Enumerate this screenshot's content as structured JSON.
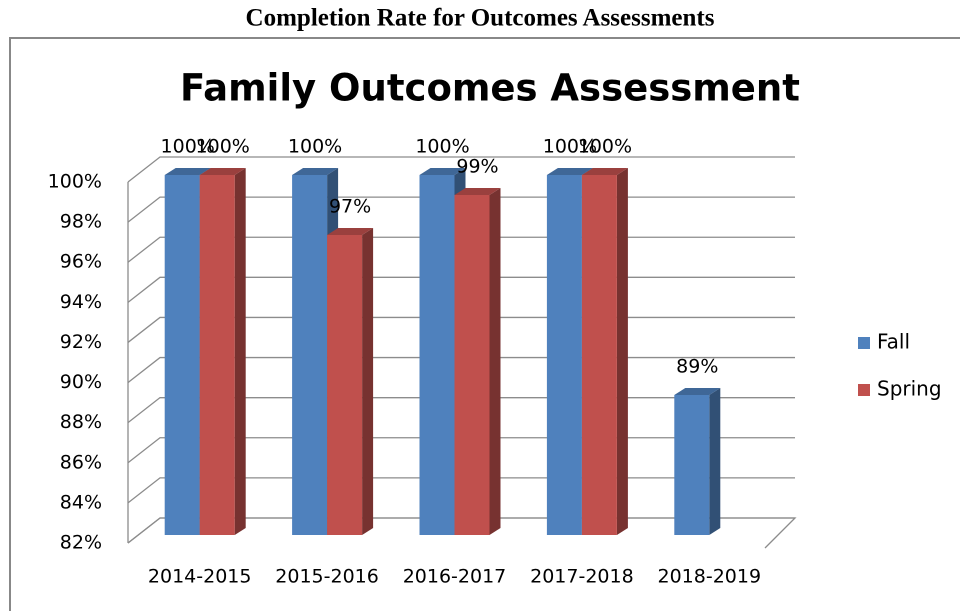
{
  "page_title": "Completion Rate for Outcomes Assessments",
  "chart_data": {
    "type": "bar3d",
    "title": "Family Outcomes Assessment",
    "categories": [
      "2014-2015",
      "2015-2016",
      "2016-2017",
      "2017-2018",
      "2018-2019"
    ],
    "series": [
      {
        "name": "Fall",
        "color": "#4f81bd",
        "values": [
          100,
          100,
          100,
          100,
          89
        ],
        "value_labels": [
          "100%",
          "100%",
          "100%",
          "100%",
          "89%"
        ]
      },
      {
        "name": "Spring",
        "color": "#c0504d",
        "values": [
          100,
          97,
          99,
          100,
          null
        ],
        "value_labels": [
          "100%",
          "97%",
          "99%",
          "100%",
          null
        ]
      }
    ],
    "ylim": [
      82,
      100
    ],
    "yticks": [
      {
        "value": 82,
        "label": "82%"
      },
      {
        "value": 84,
        "label": "84%"
      },
      {
        "value": 86,
        "label": "86%"
      },
      {
        "value": 88,
        "label": "88%"
      },
      {
        "value": 90,
        "label": "90%"
      },
      {
        "value": 92,
        "label": "92%"
      },
      {
        "value": 94,
        "label": "94%"
      },
      {
        "value": 96,
        "label": "96%"
      },
      {
        "value": 98,
        "label": "98%"
      },
      {
        "value": 100,
        "label": "100%"
      }
    ],
    "grid": true,
    "legend": "right"
  }
}
